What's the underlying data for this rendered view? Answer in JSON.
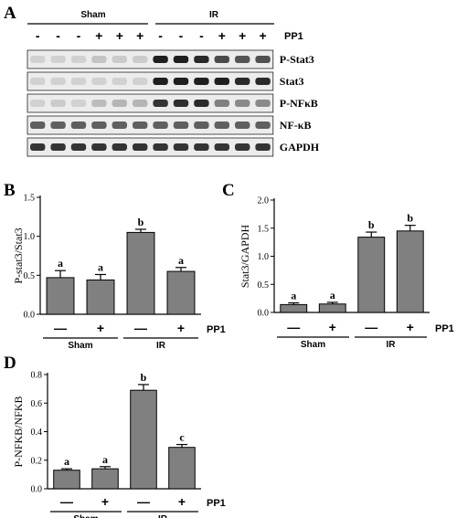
{
  "blot": {
    "letter": "A",
    "group_labels": [
      "Sham",
      "IR"
    ],
    "pp1_label": "PP1",
    "pp1_treatment": [
      "-",
      "-",
      "-",
      "+",
      "+",
      "+",
      "-",
      "-",
      "-",
      "+",
      "+",
      "+"
    ],
    "rows": [
      {
        "label": "P-Stat3",
        "lane_intensity": [
          0.12,
          0.12,
          0.12,
          0.18,
          0.15,
          0.15,
          0.95,
          0.95,
          0.9,
          0.75,
          0.7,
          0.72
        ]
      },
      {
        "label": "Stat3",
        "lane_intensity": [
          0.12,
          0.12,
          0.12,
          0.12,
          0.12,
          0.12,
          0.95,
          0.95,
          0.95,
          0.95,
          0.9,
          0.9
        ]
      },
      {
        "label": "P-NFκB",
        "lane_intensity": [
          0.12,
          0.15,
          0.12,
          0.22,
          0.25,
          0.25,
          0.85,
          0.88,
          0.9,
          0.5,
          0.45,
          0.45
        ]
      },
      {
        "label": "NF-κB",
        "lane_intensity": [
          0.65,
          0.65,
          0.65,
          0.65,
          0.65,
          0.65,
          0.65,
          0.65,
          0.65,
          0.65,
          0.65,
          0.65
        ]
      },
      {
        "label": "GAPDH",
        "lane_intensity": [
          0.85,
          0.85,
          0.85,
          0.85,
          0.85,
          0.85,
          0.85,
          0.85,
          0.85,
          0.85,
          0.85,
          0.85
        ]
      }
    ]
  },
  "chart_data": [
    {
      "letter": "B",
      "type": "bar",
      "ylabel": "P-stat3/Stat3",
      "ylim": [
        0,
        1.5
      ],
      "yticks": [
        0,
        0.5,
        1.0,
        1.5
      ],
      "ytick_labels": [
        "0.0",
        "0.5",
        "1.0",
        "1.5"
      ],
      "treatment": [
        "—",
        "+",
        "—",
        "+"
      ],
      "treatment_label": "PP1",
      "groups": [
        "Sham",
        "IR"
      ],
      "values": [
        0.47,
        0.44,
        1.05,
        0.55
      ],
      "errors": [
        0.09,
        0.07,
        0.04,
        0.05
      ],
      "significance": [
        "a",
        "a",
        "b",
        "a"
      ]
    },
    {
      "letter": "C",
      "type": "bar",
      "ylabel": "Stat3/GAPDH",
      "ylim": [
        0,
        2.0
      ],
      "yticks": [
        0,
        0.5,
        1.0,
        1.5,
        2.0
      ],
      "ytick_labels": [
        "0.0",
        "0.5",
        "1.0",
        "1.5",
        "2.0"
      ],
      "treatment": [
        "—",
        "+",
        "—",
        "+"
      ],
      "treatment_label": "PP1",
      "groups": [
        "Sham",
        "IR"
      ],
      "values": [
        0.14,
        0.15,
        1.34,
        1.45
      ],
      "errors": [
        0.03,
        0.03,
        0.09,
        0.1
      ],
      "significance": [
        "a",
        "a",
        "b",
        "b"
      ]
    },
    {
      "letter": "D",
      "type": "bar",
      "ylabel": "P-NFKB/NFKB",
      "ylim": [
        0,
        0.8
      ],
      "yticks": [
        0,
        0.2,
        0.4,
        0.6,
        0.8
      ],
      "ytick_labels": [
        "0.0",
        "0.2",
        "0.4",
        "0.6",
        "0.8"
      ],
      "treatment": [
        "—",
        "+",
        "—",
        "+"
      ],
      "treatment_label": "PP1",
      "groups": [
        "Sham",
        "IR"
      ],
      "values": [
        0.13,
        0.14,
        0.69,
        0.29
      ],
      "errors": [
        0.01,
        0.015,
        0.04,
        0.02
      ],
      "significance": [
        "a",
        "a",
        "b",
        "c"
      ]
    }
  ]
}
